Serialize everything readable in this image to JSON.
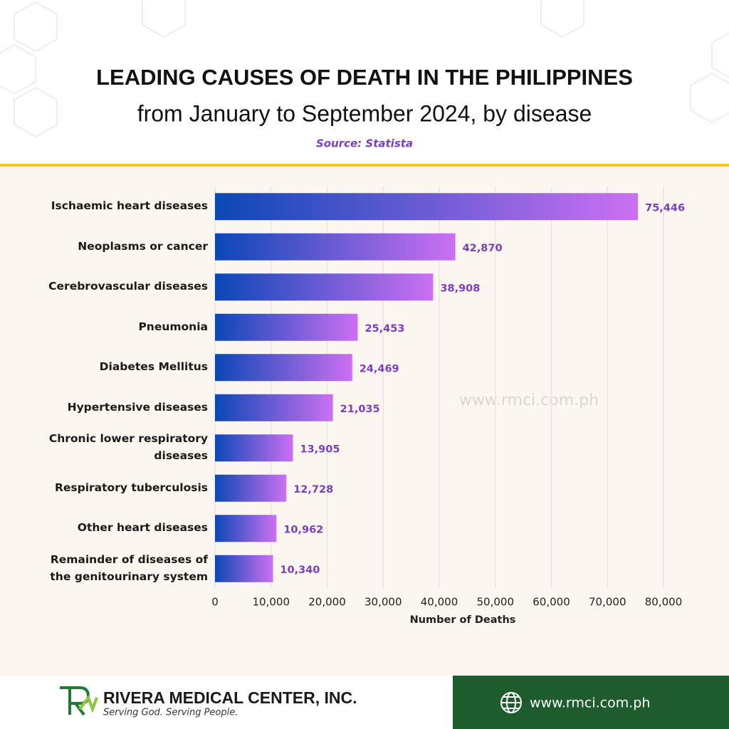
{
  "title": "LEADING CAUSES OF DEATH IN THE PHILIPPINES",
  "subtitle": "from January to September 2024, by disease",
  "source": "Source: Statista",
  "watermark": "www.rmci.com.ph",
  "footer": {
    "company": "RIVERA MEDICAL CENTER, INC.",
    "tagline": "Serving God. Serving People.",
    "website": "www.rmci.com.ph"
  },
  "chart_data": {
    "type": "bar",
    "orientation": "horizontal",
    "x_label": "Number of Deaths",
    "categories": [
      "Ischaemic heart diseases",
      "Neoplasms or cancer",
      "Cerebrovascular diseases",
      "Pneumonia",
      "Diabetes Mellitus",
      "Hypertensive diseases",
      "Chronic lower respiratory diseases",
      "Respiratory tuberculosis",
      "Other heart diseases",
      "Remainder of diseases of the genitourinary system"
    ],
    "values": [
      75446,
      42870,
      38908,
      25453,
      24469,
      21035,
      13905,
      12728,
      10962,
      10340
    ],
    "value_labels": [
      "75,446",
      "42,870",
      "38,908",
      "25,453",
      "24,469",
      "21,035",
      "13,905",
      "12,728",
      "10,962",
      "10,340"
    ],
    "colors": [
      "#0b47b6",
      "#cc70f2"
    ],
    "value_label_color": "#7b3fc0",
    "xlim": [
      0,
      80000
    ],
    "xticks": [
      0,
      {
        "value": 10000,
        "label": "10,000"
      },
      {
        "value": 20000,
        "label": "20,000"
      },
      {
        "value": 30000,
        "label": "30,000"
      },
      {
        "value": 40000,
        "label": "40,000"
      },
      {
        "value": 50000,
        "label": "50,000"
      },
      {
        "value": 60000,
        "label": "60,000"
      },
      {
        "value": 70000,
        "label": "70,000"
      },
      {
        "value": 80000,
        "label": "80,000"
      }
    ],
    "grid": true
  }
}
